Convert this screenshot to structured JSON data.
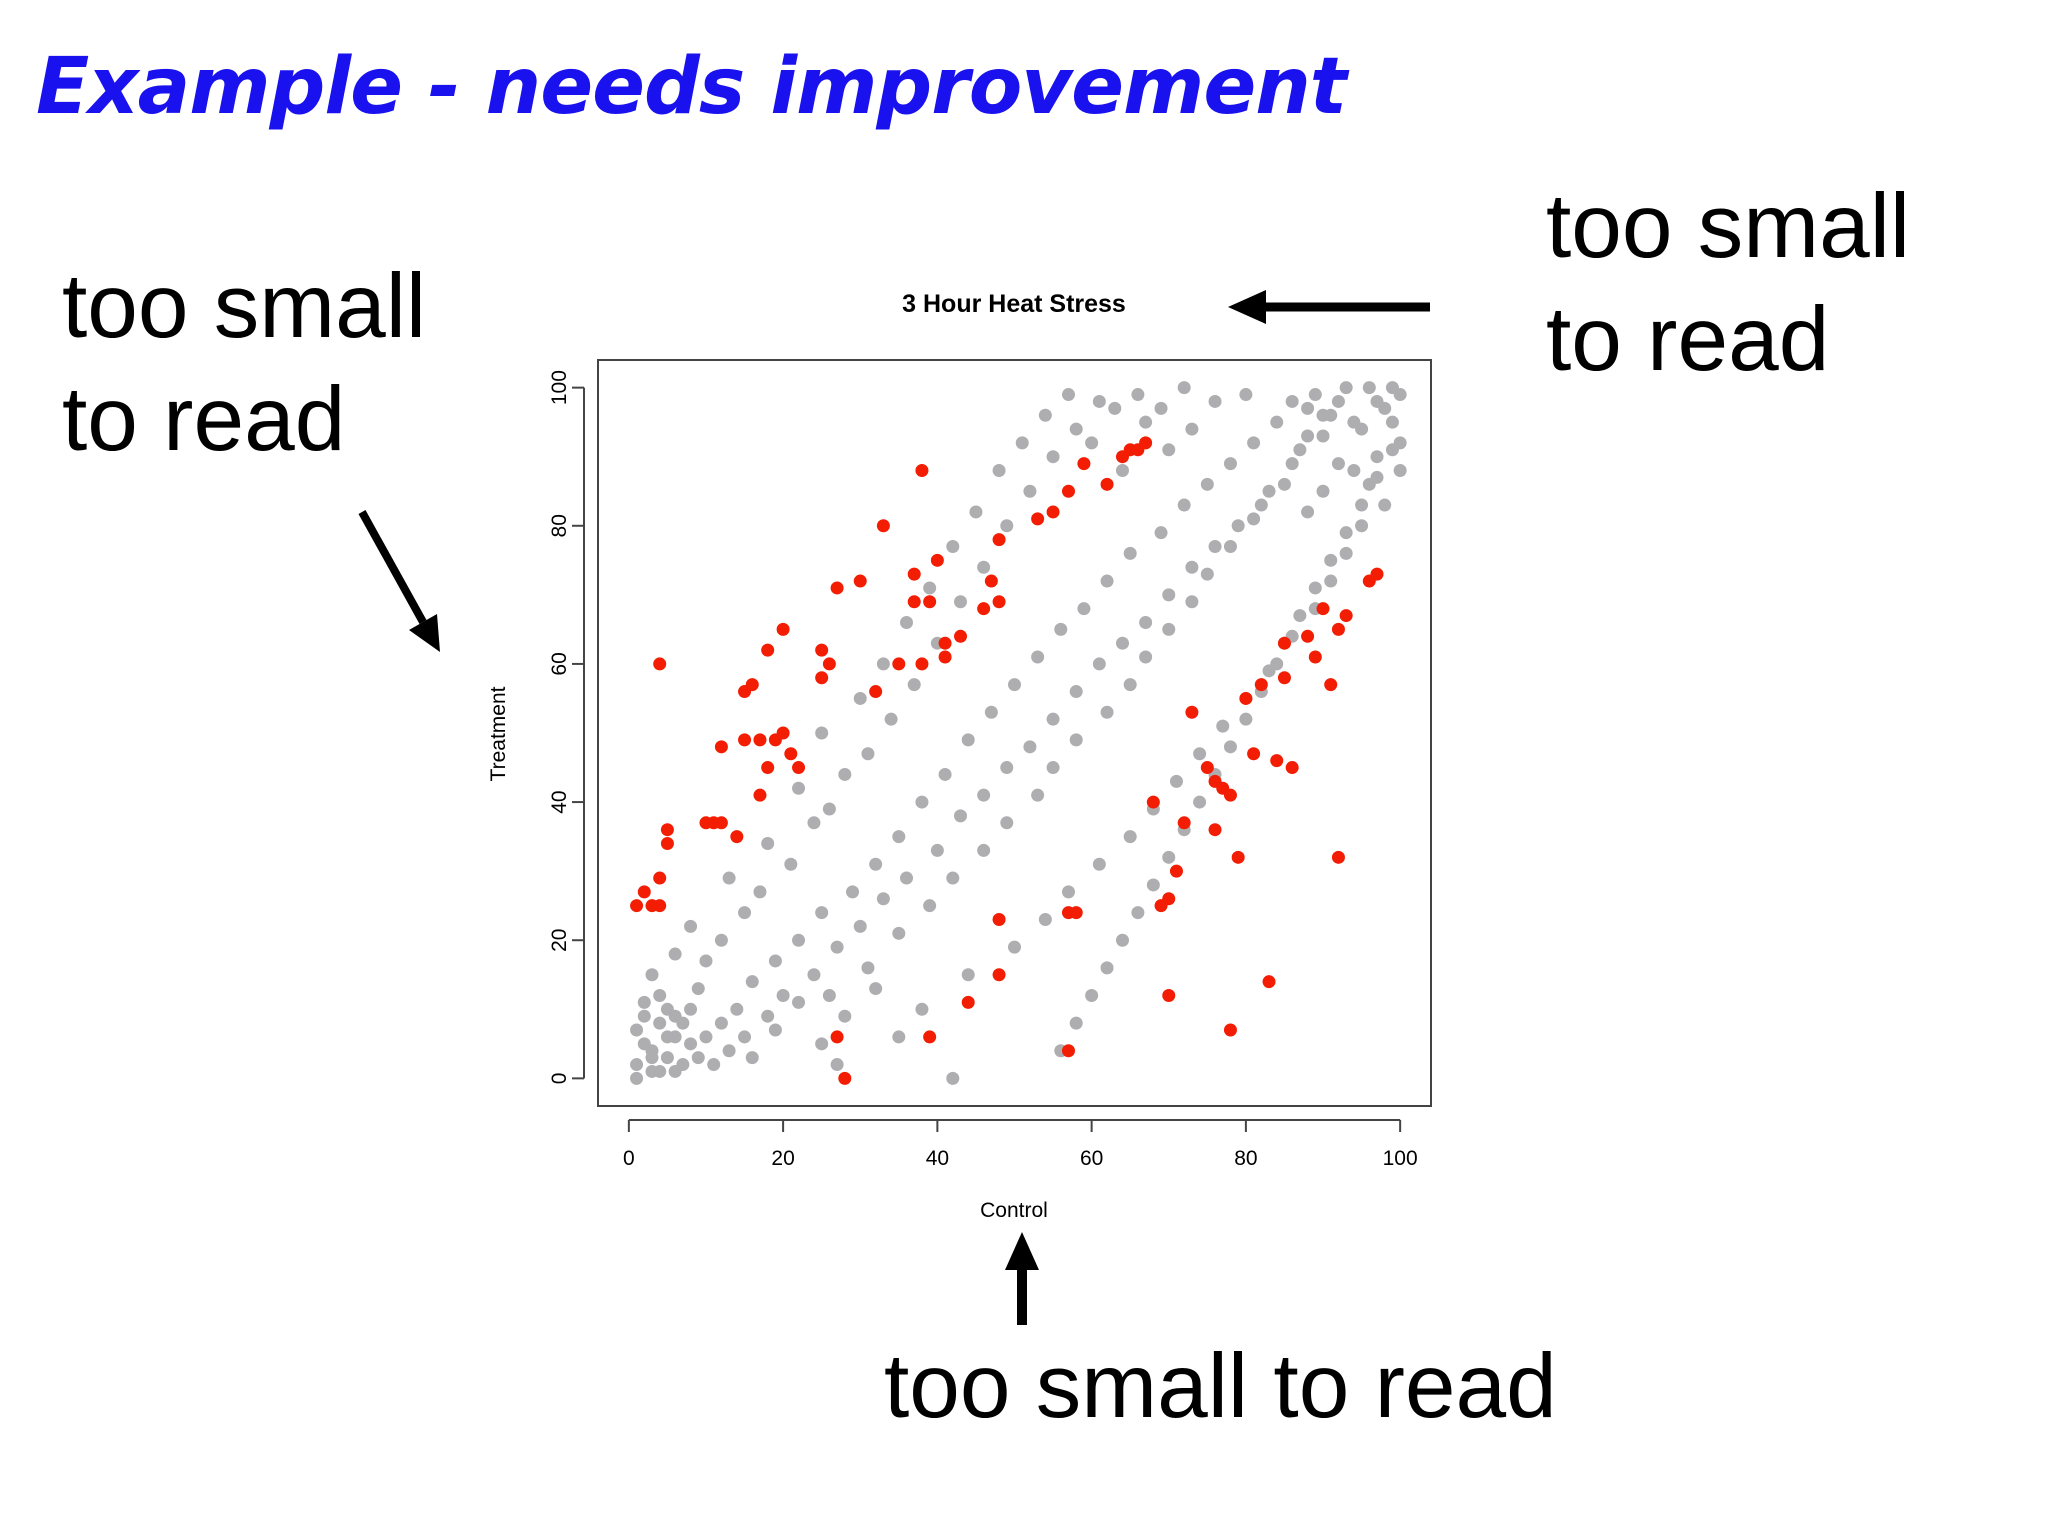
{
  "slide": {
    "title": "Example - needs improvement"
  },
  "annotations": {
    "left": [
      "too small",
      "to read"
    ],
    "right": [
      "too small",
      "to read"
    ],
    "bottom": "too small to read"
  },
  "colors": {
    "title": "#1a12ee",
    "point_default": "#aeadb0",
    "point_highlight": "#f21d03"
  },
  "chart_data": {
    "type": "scatter",
    "title": "3 Hour Heat Stress",
    "xlabel": "Control",
    "ylabel": "Treatment",
    "xlim": [
      -4,
      104
    ],
    "ylim": [
      -4,
      104
    ],
    "xticks": [
      0,
      20,
      40,
      60,
      80,
      100
    ],
    "yticks": [
      0,
      20,
      40,
      60,
      80,
      100
    ],
    "grid": false,
    "legend": "none",
    "series": [
      {
        "color": "#aeadb0",
        "points": [
          [
            1,
            2
          ],
          [
            2,
            5
          ],
          [
            3,
            1
          ],
          [
            4,
            8
          ],
          [
            5,
            3
          ],
          [
            6,
            6
          ],
          [
            2,
            9
          ],
          [
            3,
            4
          ],
          [
            1,
            7
          ],
          [
            5,
            10
          ],
          [
            7,
            2
          ],
          [
            4,
            1
          ],
          [
            6,
            9
          ],
          [
            8,
            5
          ],
          [
            2,
            11
          ],
          [
            3,
            3
          ],
          [
            5,
            6
          ],
          [
            1,
            0
          ],
          [
            7,
            8
          ],
          [
            6,
            1
          ],
          [
            9,
            3
          ],
          [
            8,
            10
          ],
          [
            10,
            6
          ],
          [
            4,
            12
          ],
          [
            11,
            2
          ],
          [
            12,
            8
          ],
          [
            9,
            13
          ],
          [
            13,
            4
          ],
          [
            3,
            15
          ],
          [
            14,
            10
          ],
          [
            10,
            17
          ],
          [
            15,
            6
          ],
          [
            6,
            18
          ],
          [
            16,
            14
          ],
          [
            12,
            20
          ],
          [
            18,
            9
          ],
          [
            8,
            22
          ],
          [
            19,
            17
          ],
          [
            15,
            24
          ],
          [
            20,
            12
          ],
          [
            22,
            20
          ],
          [
            17,
            27
          ],
          [
            24,
            15
          ],
          [
            13,
            29
          ],
          [
            25,
            24
          ],
          [
            21,
            31
          ],
          [
            27,
            19
          ],
          [
            18,
            34
          ],
          [
            29,
            27
          ],
          [
            24,
            37
          ],
          [
            30,
            22
          ],
          [
            26,
            39
          ],
          [
            32,
            31
          ],
          [
            22,
            42
          ],
          [
            33,
            26
          ],
          [
            28,
            44
          ],
          [
            35,
            35
          ],
          [
            31,
            47
          ],
          [
            36,
            29
          ],
          [
            25,
            50
          ],
          [
            38,
            40
          ],
          [
            34,
            52
          ],
          [
            40,
            33
          ],
          [
            30,
            55
          ],
          [
            41,
            44
          ],
          [
            37,
            57
          ],
          [
            43,
            38
          ],
          [
            33,
            60
          ],
          [
            44,
            49
          ],
          [
            40,
            63
          ],
          [
            46,
            41
          ],
          [
            36,
            66
          ],
          [
            47,
            53
          ],
          [
            43,
            69
          ],
          [
            49,
            45
          ],
          [
            39,
            71
          ],
          [
            50,
            57
          ],
          [
            46,
            74
          ],
          [
            52,
            48
          ],
          [
            42,
            77
          ],
          [
            53,
            61
          ],
          [
            49,
            80
          ],
          [
            55,
            52
          ],
          [
            45,
            82
          ],
          [
            56,
            65
          ],
          [
            52,
            85
          ],
          [
            58,
            56
          ],
          [
            48,
            88
          ],
          [
            59,
            68
          ],
          [
            55,
            90
          ],
          [
            61,
            60
          ],
          [
            51,
            92
          ],
          [
            62,
            72
          ],
          [
            58,
            94
          ],
          [
            64,
            63
          ],
          [
            54,
            96
          ],
          [
            65,
            76
          ],
          [
            61,
            98
          ],
          [
            67,
            66
          ],
          [
            57,
            99
          ],
          [
            69,
            79
          ],
          [
            64,
            88
          ],
          [
            70,
            70
          ],
          [
            60,
            92
          ],
          [
            72,
            83
          ],
          [
            67,
            95
          ],
          [
            73,
            74
          ],
          [
            63,
            97
          ],
          [
            75,
            86
          ],
          [
            70,
            91
          ],
          [
            76,
            77
          ],
          [
            66,
            99
          ],
          [
            78,
            89
          ],
          [
            73,
            94
          ],
          [
            79,
            80
          ],
          [
            69,
            97
          ],
          [
            81,
            92
          ],
          [
            76,
            98
          ],
          [
            82,
            83
          ],
          [
            72,
            100
          ],
          [
            84,
            95
          ],
          [
            80,
            99
          ],
          [
            85,
            86
          ],
          [
            88,
            97
          ],
          [
            90,
            93
          ],
          [
            92,
            98
          ],
          [
            94,
            95
          ],
          [
            96,
            100
          ],
          [
            98,
            97
          ],
          [
            100,
            99
          ],
          [
            89,
            99
          ],
          [
            91,
            96
          ],
          [
            93,
            100
          ],
          [
            95,
            94
          ],
          [
            97,
            98
          ],
          [
            99,
            100
          ],
          [
            87,
            91
          ],
          [
            86,
            98
          ],
          [
            94,
            88
          ],
          [
            97,
            90
          ],
          [
            99,
            95
          ],
          [
            100,
            92
          ],
          [
            92,
            89
          ],
          [
            90,
            85
          ],
          [
            88,
            82
          ],
          [
            96,
            86
          ],
          [
            98,
            83
          ],
          [
            100,
            88
          ],
          [
            95,
            80
          ],
          [
            93,
            76
          ],
          [
            91,
            72
          ],
          [
            89,
            68
          ],
          [
            86,
            64
          ],
          [
            84,
            60
          ],
          [
            82,
            56
          ],
          [
            80,
            52
          ],
          [
            78,
            48
          ],
          [
            76,
            44
          ],
          [
            74,
            40
          ],
          [
            72,
            36
          ],
          [
            70,
            32
          ],
          [
            68,
            28
          ],
          [
            66,
            24
          ],
          [
            64,
            20
          ],
          [
            62,
            16
          ],
          [
            60,
            12
          ],
          [
            58,
            8
          ],
          [
            56,
            4
          ],
          [
            42,
            0
          ],
          [
            27,
            2
          ],
          [
            35,
            6
          ],
          [
            38,
            10
          ],
          [
            44,
            15
          ],
          [
            50,
            19
          ],
          [
            54,
            23
          ],
          [
            57,
            27
          ],
          [
            61,
            31
          ],
          [
            65,
            35
          ],
          [
            68,
            39
          ],
          [
            71,
            43
          ],
          [
            74,
            47
          ],
          [
            77,
            51
          ],
          [
            80,
            55
          ],
          [
            83,
            59
          ],
          [
            85,
            63
          ],
          [
            87,
            67
          ],
          [
            89,
            71
          ],
          [
            91,
            75
          ],
          [
            93,
            79
          ],
          [
            95,
            83
          ],
          [
            97,
            87
          ],
          [
            99,
            91
          ],
          [
            26,
            12
          ],
          [
            31,
            16
          ],
          [
            35,
            21
          ],
          [
            39,
            25
          ],
          [
            42,
            29
          ],
          [
            46,
            33
          ],
          [
            49,
            37
          ],
          [
            53,
            41
          ],
          [
            55,
            45
          ],
          [
            58,
            49
          ],
          [
            62,
            53
          ],
          [
            65,
            57
          ],
          [
            67,
            61
          ],
          [
            70,
            65
          ],
          [
            73,
            69
          ],
          [
            75,
            73
          ],
          [
            78,
            77
          ],
          [
            81,
            81
          ],
          [
            83,
            85
          ],
          [
            86,
            89
          ],
          [
            88,
            93
          ],
          [
            90,
            96
          ],
          [
            16,
            3
          ],
          [
            19,
            7
          ],
          [
            22,
            11
          ],
          [
            25,
            5
          ],
          [
            28,
            9
          ],
          [
            32,
            13
          ]
        ]
      },
      {
        "color": "#f21d03",
        "points": [
          [
            1,
            25
          ],
          [
            2,
            27
          ],
          [
            3,
            25
          ],
          [
            4,
            25
          ],
          [
            4,
            29
          ],
          [
            5,
            34
          ],
          [
            5,
            36
          ],
          [
            4,
            60
          ],
          [
            10,
            37
          ],
          [
            11,
            37
          ],
          [
            12,
            48
          ],
          [
            12,
            37
          ],
          [
            14,
            35
          ],
          [
            15,
            49
          ],
          [
            15,
            56
          ],
          [
            16,
            57
          ],
          [
            17,
            41
          ],
          [
            17,
            49
          ],
          [
            18,
            45
          ],
          [
            18,
            62
          ],
          [
            19,
            49
          ],
          [
            20,
            50
          ],
          [
            20,
            65
          ],
          [
            21,
            47
          ],
          [
            22,
            45
          ],
          [
            25,
            58
          ],
          [
            25,
            62
          ],
          [
            26,
            60
          ],
          [
            27,
            71
          ],
          [
            30,
            72
          ],
          [
            32,
            56
          ],
          [
            33,
            80
          ],
          [
            35,
            60
          ],
          [
            37,
            73
          ],
          [
            37,
            69
          ],
          [
            38,
            88
          ],
          [
            38,
            60
          ],
          [
            39,
            69
          ],
          [
            40,
            75
          ],
          [
            41,
            63
          ],
          [
            41,
            61
          ],
          [
            43,
            64
          ],
          [
            46,
            68
          ],
          [
            47,
            72
          ],
          [
            48,
            78
          ],
          [
            48,
            69
          ],
          [
            53,
            81
          ],
          [
            55,
            82
          ],
          [
            57,
            85
          ],
          [
            59,
            89
          ],
          [
            62,
            86
          ],
          [
            64,
            90
          ],
          [
            65,
            91
          ],
          [
            66,
            91
          ],
          [
            67,
            92
          ],
          [
            68,
            40
          ],
          [
            72,
            37
          ],
          [
            73,
            53
          ],
          [
            75,
            45
          ],
          [
            76,
            43
          ],
          [
            76,
            36
          ],
          [
            77,
            42
          ],
          [
            78,
            41
          ],
          [
            79,
            32
          ],
          [
            80,
            55
          ],
          [
            81,
            47
          ],
          [
            82,
            57
          ],
          [
            84,
            46
          ],
          [
            85,
            63
          ],
          [
            85,
            58
          ],
          [
            86,
            45
          ],
          [
            88,
            64
          ],
          [
            89,
            61
          ],
          [
            90,
            68
          ],
          [
            91,
            57
          ],
          [
            92,
            65
          ],
          [
            93,
            67
          ],
          [
            96,
            72
          ],
          [
            97,
            73
          ],
          [
            92,
            32
          ],
          [
            70,
            26
          ],
          [
            69,
            25
          ],
          [
            71,
            30
          ],
          [
            70,
            12
          ],
          [
            78,
            7
          ],
          [
            83,
            14
          ],
          [
            57,
            24
          ],
          [
            58,
            24
          ],
          [
            57,
            4
          ],
          [
            48,
            23
          ],
          [
            48,
            15
          ],
          [
            44,
            11
          ],
          [
            39,
            6
          ],
          [
            27,
            6
          ],
          [
            28,
            0
          ]
        ]
      }
    ]
  }
}
